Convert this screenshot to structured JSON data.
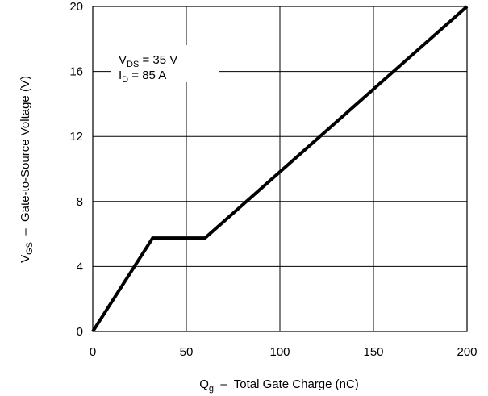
{
  "chart_data": {
    "type": "line",
    "title": "",
    "xlabel": {
      "main": "Q",
      "sub": "g",
      "rest": "  –  Total Gate Charge (nC)"
    },
    "ylabel": {
      "main": "V",
      "sub": "GS",
      "rest": "  –  Gate-to-Source Voltage (V)"
    },
    "xlim": [
      0,
      200
    ],
    "ylim": [
      0,
      20
    ],
    "x_ticks": [
      0,
      50,
      100,
      150,
      200
    ],
    "y_ticks": [
      0,
      4,
      8,
      12,
      16,
      20
    ],
    "x_tick_labels": [
      "0",
      "50",
      "100",
      "150",
      "200"
    ],
    "y_tick_labels": [
      "0",
      "4",
      "8",
      "12",
      "16",
      "20"
    ],
    "grid": true,
    "annotation": [
      {
        "main": "V",
        "sub": "DS",
        "rest": " = 35 V"
      },
      {
        "main": "I",
        "sub": "D",
        "rest": " = 85 A"
      }
    ],
    "series": [
      {
        "x": [
          0,
          32,
          60,
          200
        ],
        "y": [
          0,
          5.75,
          5.75,
          20
        ],
        "color": "#000000"
      }
    ]
  }
}
